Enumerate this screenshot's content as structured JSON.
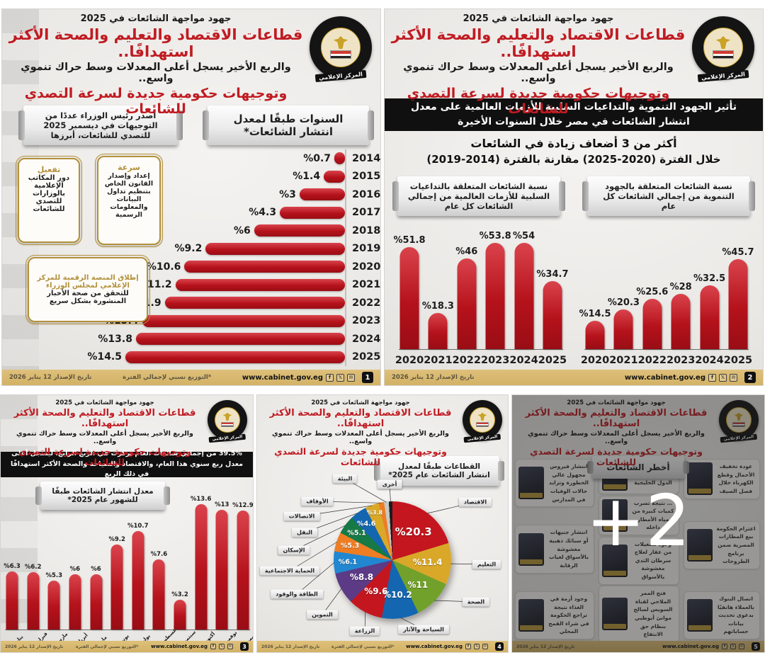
{
  "header": {
    "kicker": "جهود مواجهة الشائعات في 2025",
    "title_red_1": "قطاعات الاقتصاد والتعليم والصحة الأكثر استهدافًا..",
    "subtitle_black": "والربع الأخير يسجل أعلى المعدلات وسط حراك تنموي واسع..",
    "title_red_2": "وتوجيهات حكومية جديدة لسرعة التصدي للشائعات",
    "logo": {
      "country": "جمهورية مصر العربية",
      "org": "رئاسة مجلس الوزراء",
      "center": "المركز الإعلامي"
    }
  },
  "footer": {
    "issue_date": "تاريخ الإصدار 12 يناير 2026",
    "note": "*التوزيع نسبي لإجمالي الفترة",
    "website": "www.cabinet.gov.eg",
    "social_icons": [
      "facebook-icon",
      "x-icon",
      "mail-icon"
    ]
  },
  "colors": {
    "bar_red": "#b5121b",
    "accent_gold": "#b3913c",
    "footer_gold": "#d2b266",
    "banner_black": "#101010",
    "headline_red": "#c01b22"
  },
  "panels": {
    "p1": {
      "page_number": "1",
      "ribbon_chart": "السنوات طبقًا لمعدل انتشار الشائعات*",
      "ribbon_directives": "أصدر رئيس الوزراء عددًا من التوجيهات في ديسمبر 2025 للتصدي للشائعات، أبرزها",
      "badges": [
        {
          "highlight": "تفعيل",
          "body": "دور المكاتب الإعلامية بالوزارات للتصدي للشائعات"
        },
        {
          "highlight": "سرعة",
          "body": "إعداد وإصدار القانون الخاص بتنظيم تداول البيانات والمعلومات الرسمية"
        },
        {
          "highlight": "إطلاق المنصة الرقمية للمركز الإعلامي لمجلس الوزراء",
          "body": "للتحقق من صحة الأخبار المنشورة بشكل سريع"
        }
      ]
    },
    "p2": {
      "page_number": "2",
      "banner": "تأثير الجهود التنموية والتداعيات السلبية للأزمات العالمية على معدل انتشار الشائعات في مصر خلال السنوات الأخيرة",
      "highlight_line1": "أكثر من 3 أضعاف زيادة في الشائعات",
      "highlight_line2": "خلال الفترة (2020-2025) مقارنة بالفترة (2014-2019)",
      "ribbon_right": "نسبة الشائعات المتعلقة بالجهود التنموية من إجمالي الشائعات كل عام",
      "ribbon_left": "نسبة الشائعات المتعلقة بالتداعيات السلبية للأزمات العالمية من إجمالي الشائعات كل عام"
    },
    "p3": {
      "page_number": "3",
      "banner": "39.5% من إجمالي شائعات العام تركزت في الربع الرابع، ليسجل أعلى معدل ربع سنوي هذا العام، والاقتصاد والسياحة والصحة الأكثر استهدافًا في ذلك الربع",
      "ribbon": "معدل انتشار الشائعات طبقًا للشهور عام 2025*"
    },
    "p4": {
      "page_number": "4",
      "ribbon": "القطاعات طبقًا لمعدل انتشار الشائعات عام 2025*"
    },
    "p5": {
      "page_number": "5",
      "ribbon": "أخطر الشائعات",
      "overlay_more": "+2",
      "cards_right": [
        "عودة تخفيف الأحمال وقطع الكهرباء خلال فصل الصيف",
        "اعتزام الحكومة بيع المطارات المصرية ضمن برنامج الطروحات",
        "اتصال البنوك بالعملاء هاتفيًا بدعوى تحديث بيانات حساباتهم"
      ],
      "cards_middle": [
        "بيع منطقة وسط البلد لإحدى الدول الخليجية",
        "… نتيجة تسرب كميات كبيرة من مياه الأمطار داخله",
        "وجود تشغيلات من عقار لعلاج سرطان الثدي مغشوشة بالأسواق",
        "فتح الممر الملاحي لقناة السويس لصالح موانئ أبوظبي بنظام حق الانتفاع"
      ],
      "cards_left": [
        "انتشار فيروس مجهول عالي الخطورة وتزايد حالات الوفيات في المدارس",
        "انتشار جنيهات أو سبائك ذهبية مغشوشة بالأسواق لغياب الرقابة",
        "وجود أزمة في الغذاء نتيجة تراجع الحكومة في شراء القمح المحلي"
      ]
    }
  },
  "chart_data": [
    {
      "id": "rumors_by_year",
      "panel": 1,
      "type": "bar",
      "orientation": "horizontal",
      "title": "السنوات طبقًا لمعدل انتشار الشائعات*",
      "categories": [
        "2014",
        "2015",
        "2016",
        "2017",
        "2018",
        "2019",
        "2020",
        "2021",
        "2022",
        "2023",
        "2024",
        "2025"
      ],
      "values": [
        0.7,
        1.4,
        3,
        4.3,
        6,
        9.2,
        10.6,
        11.2,
        11.9,
        13.4,
        13.8,
        14.5
      ],
      "unit": "%",
      "xlim": [
        0,
        15
      ],
      "bar_color": "#b5121b",
      "grid": false
    },
    {
      "id": "global_crises_rumors_share",
      "panel": 2,
      "type": "bar",
      "orientation": "vertical",
      "title": "نسبة الشائعات المتعلقة بالتداعيات السلبية للأزمات العالمية من إجمالي الشائعات كل عام",
      "categories": [
        "2020",
        "2021",
        "2022",
        "2023",
        "2024",
        "2025"
      ],
      "values": [
        51.8,
        18.3,
        46,
        53.8,
        54,
        34.7
      ],
      "unit": "%",
      "ylim": [
        0,
        60
      ],
      "bar_color": "#b5121b",
      "grid": false
    },
    {
      "id": "development_efforts_rumors_share",
      "panel": 2,
      "type": "bar",
      "orientation": "vertical",
      "title": "نسبة الشائعات المتعلقة بالجهود التنموية من إجمالي الشائعات كل عام",
      "categories": [
        "2020",
        "2021",
        "2022",
        "2023",
        "2024",
        "2025"
      ],
      "values": [
        14.5,
        20.3,
        25.6,
        28,
        32.5,
        45.7
      ],
      "unit": "%",
      "ylim": [
        0,
        60
      ],
      "bar_color": "#b5121b",
      "grid": false
    },
    {
      "id": "rumors_by_month_2025",
      "panel": 3,
      "type": "bar",
      "orientation": "vertical",
      "title": "معدل انتشار الشائعات طبقًا للشهور عام 2025*",
      "categories": [
        "يناير",
        "فبراير",
        "مارس",
        "أبريل",
        "مايو",
        "يونيو",
        "يوليو",
        "أغسطس",
        "سبتمبر",
        "أكتوبر",
        "نوفمبر",
        "ديسمبر"
      ],
      "values": [
        6.3,
        6.2,
        5.3,
        6,
        6,
        9.2,
        10.7,
        7.6,
        3.2,
        13.6,
        13,
        12.9
      ],
      "unit": "%",
      "ylim": [
        0,
        15
      ],
      "bar_color": "#b5121b",
      "grid": false
    },
    {
      "id": "rumors_by_sector_2025",
      "panel": 4,
      "type": "pie",
      "title": "القطاعات طبقًا لمعدل انتشار الشائعات عام 2025*",
      "slices": [
        {
          "label": "الاقتصاد",
          "value": 20.3,
          "color": "#c4161f",
          "value_shown": true
        },
        {
          "label": "التعليم",
          "value": 11.4,
          "color": "#d9a829",
          "value_shown": true
        },
        {
          "label": "الصحة",
          "value": 11,
          "color": "#71a12b",
          "value_shown": true
        },
        {
          "label": "السياحة والآثار",
          "value": 10.2,
          "color": "#1466b0",
          "value_shown": true
        },
        {
          "label": "الزراعة",
          "value": 9.6,
          "color": "#c4161f",
          "value_shown": true
        },
        {
          "label": "التموين",
          "value": 8.8,
          "color": "#5c3a86",
          "value_shown": true
        },
        {
          "label": "الطاقة والوقود",
          "value": 6.1,
          "color": "#2187d1",
          "value_shown": true
        },
        {
          "label": "الحماية الاجتماعية",
          "value": 5.3,
          "color": "#ee7d23",
          "value_shown": true
        },
        {
          "label": "الإسكان",
          "value": 5.1,
          "color": "#177a46",
          "value_shown": true
        },
        {
          "label": "النقل",
          "value": 4.6,
          "color": "#1466b0",
          "value_shown": true
        },
        {
          "label": "الاتصالات",
          "value": 3.8,
          "color": "#d9a829",
          "value_shown": true
        },
        {
          "label": "الأوقاف",
          "value": 1.5,
          "color": "#ee7d23",
          "value_shown": false
        },
        {
          "label": "البيئة",
          "value": 1.3,
          "color": "#c8c8c6",
          "value_shown": false
        },
        {
          "label": "أخرى",
          "value": 1.0,
          "color": "#1c1c1c",
          "value_shown": false
        }
      ],
      "unit": "%",
      "legend_position": "callout-labels"
    }
  ]
}
